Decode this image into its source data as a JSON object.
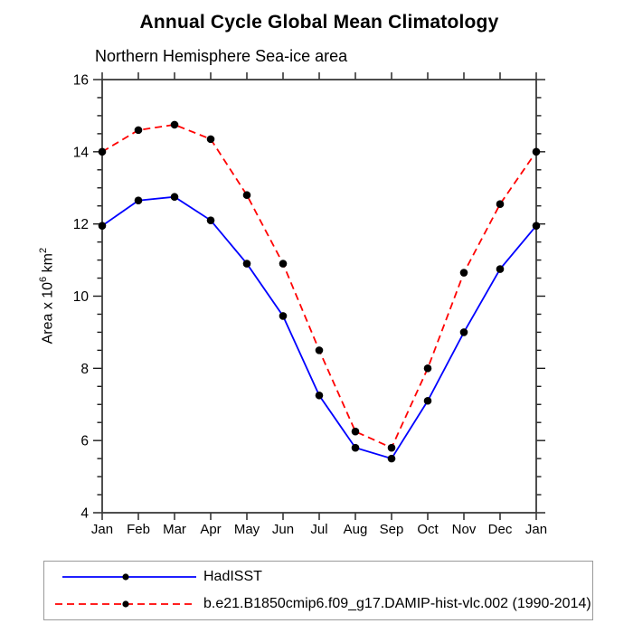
{
  "page": {
    "title": "Annual Cycle Global Mean Climatology",
    "subtitle": "Northern Hemisphere Sea-ice area"
  },
  "ylabel_parts": {
    "prefix": "Area x 10",
    "sup1": "6",
    "mid": " km",
    "sup2": "2"
  },
  "chart_data": {
    "type": "line",
    "title": "Annual Cycle Global Mean Climatology",
    "subtitle": "Northern Hemisphere Sea-ice area",
    "xlabel": "",
    "ylabel": "Area x 10^6 km^2",
    "x_categories": [
      "Jan",
      "Feb",
      "Mar",
      "Apr",
      "May",
      "Jun",
      "Jul",
      "Aug",
      "Sep",
      "Oct",
      "Nov",
      "Dec",
      "Jan"
    ],
    "ylim": [
      4,
      16
    ],
    "y_major_ticks": [
      4,
      6,
      8,
      10,
      12,
      14,
      16
    ],
    "y_minor_step": 0.5,
    "grid": false,
    "legend_position": "bottom",
    "marker": {
      "shape": "circle",
      "color": "#000000",
      "radius": 4.3
    },
    "series": [
      {
        "name": "HadISST",
        "color": "#0000ff",
        "style": "solid",
        "values": [
          11.95,
          12.65,
          12.75,
          12.1,
          10.9,
          9.45,
          7.25,
          5.8,
          5.5,
          7.1,
          9.0,
          10.75,
          11.95
        ]
      },
      {
        "name": "b.e21.B1850cmip6.f09_g17.DAMIP-hist-vlc.002 (1990-2014)",
        "color": "#ff0000",
        "style": "dashed",
        "values": [
          14.0,
          14.6,
          14.75,
          14.35,
          12.8,
          10.9,
          8.5,
          6.25,
          5.8,
          8.0,
          10.65,
          12.55,
          14.0
        ]
      }
    ]
  }
}
